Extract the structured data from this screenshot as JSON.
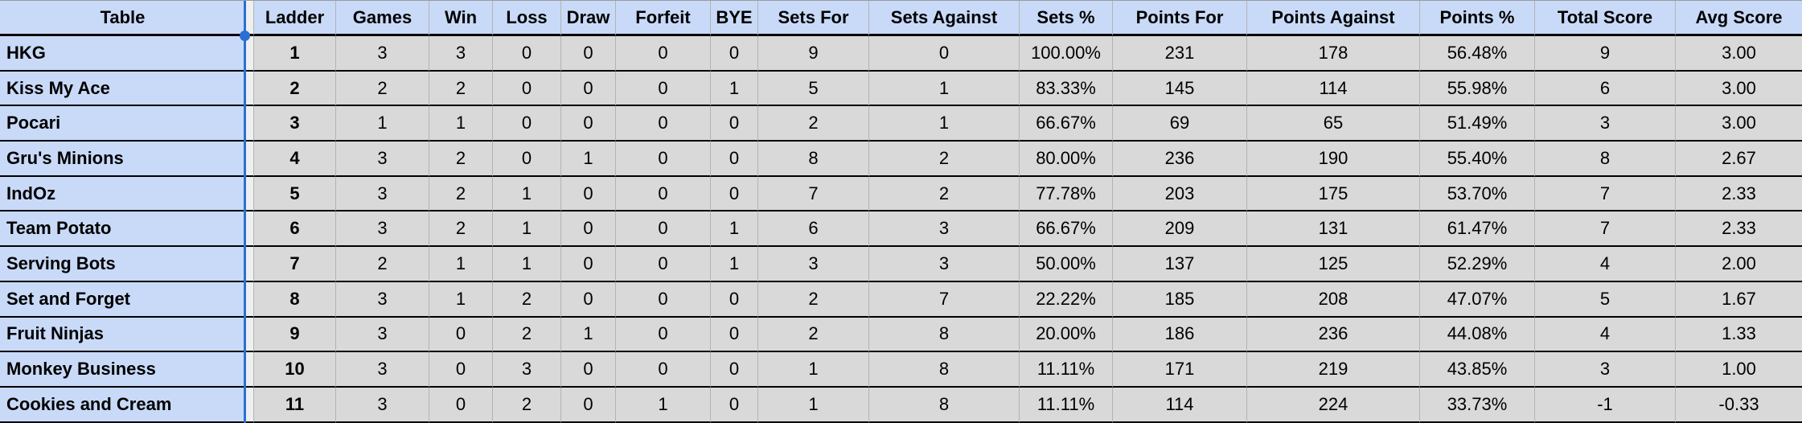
{
  "colors": {
    "header_bg": "#c9daf8",
    "team_col_bg": "#c9daf8",
    "data_cell_bg": "#d9d9d9",
    "row_border": "#000000",
    "cell_divider": "#b3b3b3",
    "frozen_divider_blue": "#2b6fd4"
  },
  "icons": {
    "freeze_handle": "filled-circle"
  },
  "table": {
    "first_col_header": "Table",
    "columns": [
      "Ladder",
      "Games",
      "Win",
      "Loss",
      "Draw",
      "Forfeit",
      "BYE",
      "Sets For",
      "Sets Against",
      "Sets %",
      "Points For",
      "Points Against",
      "Points %",
      "Total Score",
      "Avg Score"
    ],
    "rows": [
      {
        "team": "HKG",
        "values": [
          "1",
          "3",
          "3",
          "0",
          "0",
          "0",
          "0",
          "9",
          "0",
          "100.00%",
          "231",
          "178",
          "56.48%",
          "9",
          "3.00"
        ]
      },
      {
        "team": "Kiss My Ace",
        "values": [
          "2",
          "2",
          "2",
          "0",
          "0",
          "0",
          "1",
          "5",
          "1",
          "83.33%",
          "145",
          "114",
          "55.98%",
          "6",
          "3.00"
        ]
      },
      {
        "team": "Pocari",
        "values": [
          "3",
          "1",
          "1",
          "0",
          "0",
          "0",
          "0",
          "2",
          "1",
          "66.67%",
          "69",
          "65",
          "51.49%",
          "3",
          "3.00"
        ]
      },
      {
        "team": "Gru's Minions",
        "values": [
          "4",
          "3",
          "2",
          "0",
          "1",
          "0",
          "0",
          "8",
          "2",
          "80.00%",
          "236",
          "190",
          "55.40%",
          "8",
          "2.67"
        ]
      },
      {
        "team": "IndOz",
        "values": [
          "5",
          "3",
          "2",
          "1",
          "0",
          "0",
          "0",
          "7",
          "2",
          "77.78%",
          "203",
          "175",
          "53.70%",
          "7",
          "2.33"
        ]
      },
      {
        "team": "Team Potato",
        "values": [
          "6",
          "3",
          "2",
          "1",
          "0",
          "0",
          "1",
          "6",
          "3",
          "66.67%",
          "209",
          "131",
          "61.47%",
          "7",
          "2.33"
        ]
      },
      {
        "team": "Serving Bots",
        "values": [
          "7",
          "2",
          "1",
          "1",
          "0",
          "0",
          "1",
          "3",
          "3",
          "50.00%",
          "137",
          "125",
          "52.29%",
          "4",
          "2.00"
        ]
      },
      {
        "team": "Set and Forget",
        "values": [
          "8",
          "3",
          "1",
          "2",
          "0",
          "0",
          "0",
          "2",
          "7",
          "22.22%",
          "185",
          "208",
          "47.07%",
          "5",
          "1.67"
        ]
      },
      {
        "team": "Fruit Ninjas",
        "values": [
          "9",
          "3",
          "0",
          "2",
          "1",
          "0",
          "0",
          "2",
          "8",
          "20.00%",
          "186",
          "236",
          "44.08%",
          "4",
          "1.33"
        ]
      },
      {
        "team": "Monkey Business",
        "values": [
          "10",
          "3",
          "0",
          "3",
          "0",
          "0",
          "0",
          "1",
          "8",
          "11.11%",
          "171",
          "219",
          "43.85%",
          "3",
          "1.00"
        ]
      },
      {
        "team": "Cookies and Cream",
        "values": [
          "11",
          "3",
          "0",
          "2",
          "0",
          "1",
          "0",
          "1",
          "8",
          "11.11%",
          "114",
          "224",
          "33.73%",
          "-1",
          "-0.33"
        ]
      }
    ]
  }
}
